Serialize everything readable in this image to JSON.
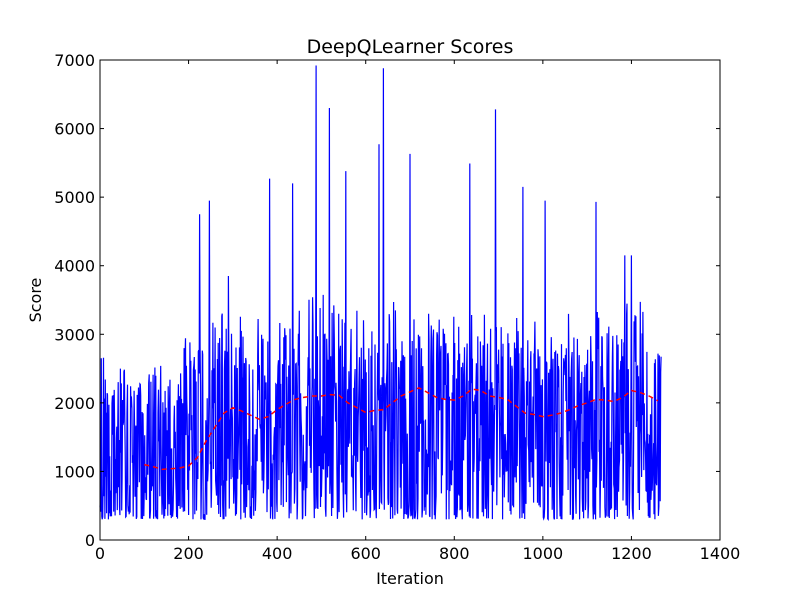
{
  "chart_data": {
    "type": "line",
    "title": "DeepQLearner Scores",
    "xlabel": "Iteration",
    "ylabel": "Score",
    "xlim": [
      0,
      1400
    ],
    "ylim": [
      0,
      7000
    ],
    "xticks": [
      0,
      200,
      400,
      600,
      800,
      1000,
      1200,
      1400
    ],
    "yticks": [
      0,
      1000,
      2000,
      3000,
      4000,
      5000,
      6000,
      7000
    ],
    "grid": false,
    "legend": "none",
    "series": [
      {
        "style": "solid",
        "color": "#0000ff",
        "x_range": [
          0,
          1267
        ],
        "point_count": 1268,
        "band_low_by_century": [
          300,
          300,
          300,
          300,
          300,
          300,
          300,
          300,
          300,
          300,
          300,
          300,
          300
        ],
        "band_high_by_century": [
          2900,
          2400,
          3200,
          3500,
          3300,
          3700,
          3300,
          3600,
          3300,
          3400,
          3300,
          3400,
          3500
        ],
        "peaks": [
          {
            "x": 225,
            "y": 4750
          },
          {
            "x": 247,
            "y": 4950
          },
          {
            "x": 290,
            "y": 3850
          },
          {
            "x": 383,
            "y": 5270
          },
          {
            "x": 435,
            "y": 5200
          },
          {
            "x": 488,
            "y": 6920
          },
          {
            "x": 518,
            "y": 6300
          },
          {
            "x": 555,
            "y": 5380
          },
          {
            "x": 630,
            "y": 5770
          },
          {
            "x": 640,
            "y": 6880
          },
          {
            "x": 700,
            "y": 5630
          },
          {
            "x": 835,
            "y": 5490
          },
          {
            "x": 893,
            "y": 6280
          },
          {
            "x": 955,
            "y": 5150
          },
          {
            "x": 1005,
            "y": 4950
          },
          {
            "x": 1120,
            "y": 4930
          },
          {
            "x": 1185,
            "y": 4150
          },
          {
            "x": 1200,
            "y": 4150
          }
        ]
      },
      {
        "style": "dashed",
        "color": "#ff0000",
        "x": [
          100,
          120,
          140,
          160,
          180,
          200,
          220,
          240,
          260,
          280,
          300,
          320,
          340,
          360,
          380,
          400,
          420,
          440,
          460,
          480,
          500,
          520,
          540,
          560,
          580,
          600,
          620,
          640,
          660,
          680,
          700,
          720,
          740,
          760,
          780,
          800,
          820,
          840,
          860,
          880,
          900,
          920,
          940,
          960,
          980,
          1000,
          1020,
          1040,
          1060,
          1080,
          1100,
          1120,
          1140,
          1160,
          1180,
          1200,
          1220,
          1240,
          1260
        ],
        "values": [
          1100,
          1070,
          1030,
          1040,
          1050,
          1080,
          1200,
          1450,
          1650,
          1850,
          1930,
          1880,
          1820,
          1760,
          1800,
          1900,
          1980,
          2050,
          2080,
          2100,
          2100,
          2120,
          2110,
          2000,
          1930,
          1860,
          1890,
          1900,
          2000,
          2100,
          2160,
          2220,
          2150,
          2080,
          2050,
          2040,
          2100,
          2200,
          2180,
          2100,
          2080,
          2050,
          1950,
          1850,
          1830,
          1800,
          1820,
          1850,
          1900,
          1960,
          2000,
          2050,
          2040,
          2020,
          2080,
          2180,
          2150,
          2100,
          2030
        ]
      }
    ]
  }
}
